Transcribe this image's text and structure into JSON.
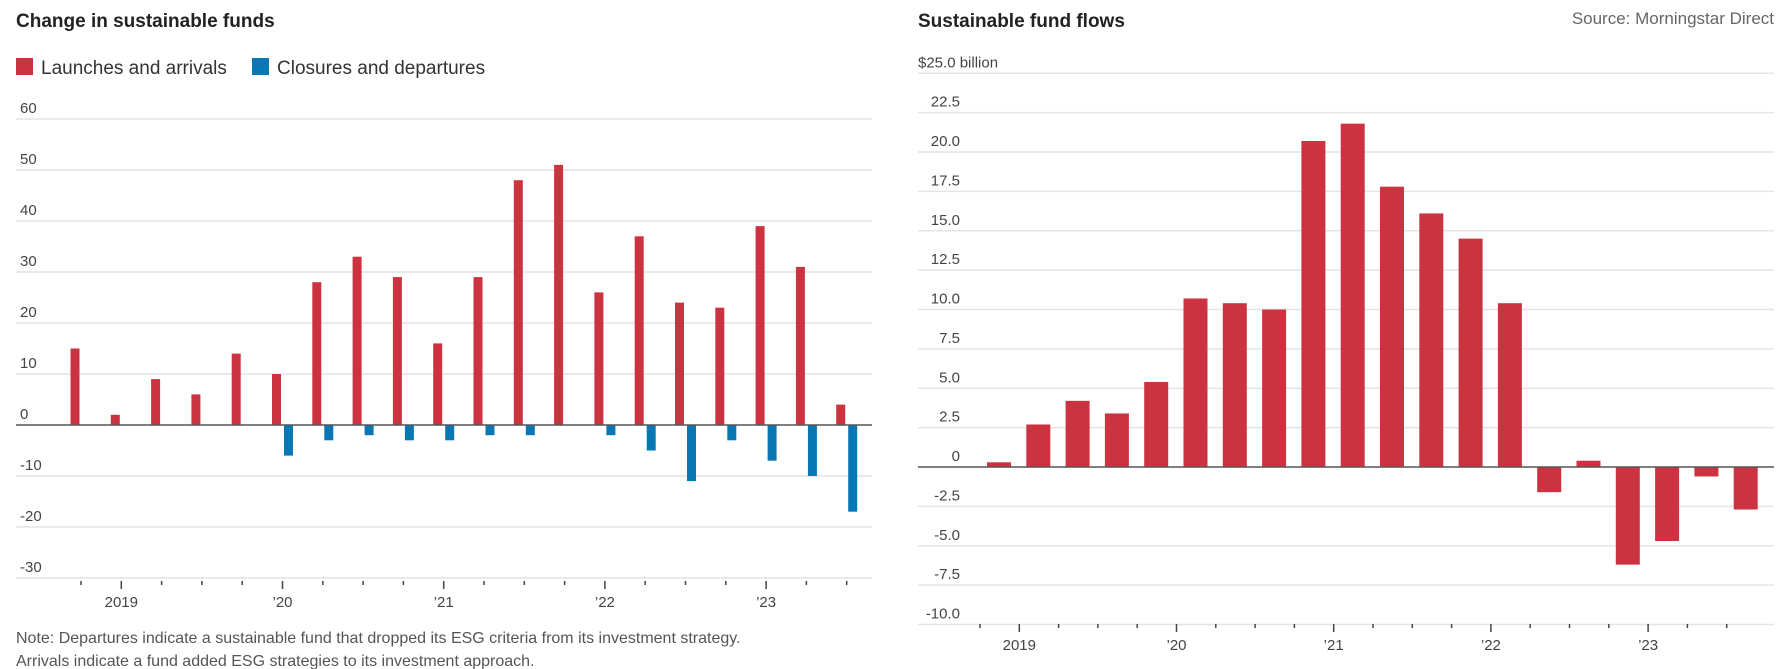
{
  "chart_data": [
    {
      "type": "bar",
      "title": "Change in sustainable funds",
      "legend": [
        {
          "name": "Launches and arrivals",
          "color": "#cc3340"
        },
        {
          "name": "Closures and departures",
          "color": "#0a77b5"
        }
      ],
      "legend_position": "top-left",
      "ylim": [
        -30,
        60
      ],
      "yticks": [
        "60",
        "50",
        "40",
        "30",
        "20",
        "10",
        "0",
        "-10",
        "-20",
        "-30"
      ],
      "ytick_values": [
        60,
        50,
        40,
        30,
        20,
        10,
        0,
        -10,
        -20,
        -30
      ],
      "xtick_labels": [
        {
          "label": "2019",
          "index": 1
        },
        {
          "label": "’20",
          "index": 5
        },
        {
          "label": "’21",
          "index": 9
        },
        {
          "label": "’22",
          "index": 13
        },
        {
          "label": "’23",
          "index": 17
        }
      ],
      "quarters": 20,
      "series": [
        {
          "name": "Launches and arrivals",
          "values": [
            15,
            2,
            9,
            6,
            14,
            10,
            28,
            33,
            29,
            16,
            29,
            48,
            51,
            26,
            37,
            24,
            23,
            39,
            31,
            4
          ]
        },
        {
          "name": "Closures and departures",
          "values": [
            0,
            0,
            0,
            0,
            0,
            -6,
            -3,
            -2,
            -3,
            -3,
            -2,
            -2,
            0,
            -2,
            -5,
            -11,
            -3,
            -7,
            -10,
            -17
          ]
        }
      ],
      "grid": true,
      "note": [
        "Note: Departures indicate a sustainable fund that dropped its ESG criteria from its investment strategy.",
        "Arrivals indicate a fund added ESG strategies to its investment approach."
      ]
    },
    {
      "type": "bar",
      "title": "Sustainable fund flows",
      "source": "Source: Morningstar Direct",
      "ylabel": "$25.0 billion",
      "ylim": [
        -10,
        25
      ],
      "yticks": [
        "$25.0 billion",
        "22.5",
        "20.0",
        "17.5",
        "15.0",
        "12.5",
        "10.0",
        "7.5",
        "5.0",
        "2.5",
        "0",
        "-2.5",
        "-5.0",
        "-7.5",
        "-10.0"
      ],
      "ytick_values": [
        25,
        22.5,
        20,
        17.5,
        15,
        12.5,
        10,
        7.5,
        5,
        2.5,
        0,
        -2.5,
        -5,
        -7.5,
        -10
      ],
      "xtick_labels": [
        {
          "label": "2019",
          "index": 1
        },
        {
          "label": "’20",
          "index": 5
        },
        {
          "label": "’21",
          "index": 9
        },
        {
          "label": "’22",
          "index": 13
        },
        {
          "label": "’23",
          "index": 17
        }
      ],
      "quarters": 20,
      "series": [
        {
          "name": "Flows",
          "color": "#cc3340",
          "values": [
            0.3,
            2.7,
            4.2,
            3.4,
            5.4,
            10.7,
            10.4,
            10.0,
            20.7,
            21.8,
            17.8,
            16.1,
            14.5,
            10.4,
            -1.6,
            0.4,
            -6.2,
            -4.7,
            -0.6,
            -2.7
          ]
        }
      ],
      "grid": true
    }
  ]
}
